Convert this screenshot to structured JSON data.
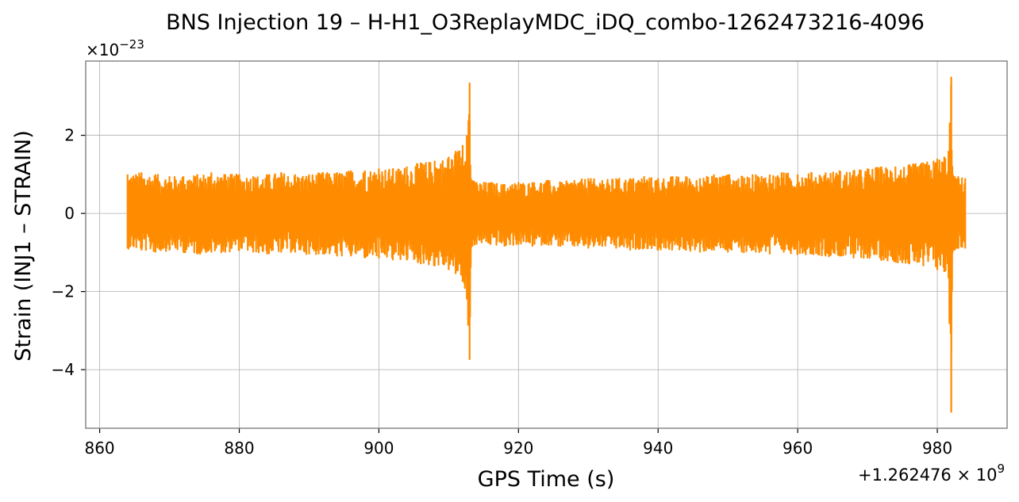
{
  "chart_data": {
    "type": "line",
    "title": "BNS Injection 19 – H-H1_O3ReplayMDC_iDQ_combo-1262473216-4096",
    "xlabel": "GPS Time (s)",
    "ylabel": "Strain (INJ1 – STRAIN)",
    "x_offset_label": "+1.262476 × 10",
    "x_offset_exponent": "9",
    "y_scale_label": "×10",
    "y_scale_exponent": "−23",
    "xlim": [
      858,
      990
    ],
    "ylim": [
      -5.5,
      3.9
    ],
    "x_ticks": [
      860,
      880,
      900,
      920,
      940,
      960,
      980
    ],
    "x_tick_labels": [
      "860",
      "880",
      "900",
      "920",
      "940",
      "960",
      "980"
    ],
    "y_ticks": [
      -4,
      -2,
      0,
      2
    ],
    "y_tick_labels": [
      "−4",
      "−2",
      "0",
      "2"
    ],
    "grid": true,
    "color": "#ff8c00",
    "series": [
      {
        "x": [
          864.0,
          866.0,
          868.0,
          870.0,
          872.0,
          874.0,
          876.0,
          878.0,
          880.0,
          882.0,
          884.0,
          886.0,
          888.0,
          890.0,
          892.0,
          894.0,
          896.0,
          898.0,
          900.0,
          902.0,
          904.0,
          906.0,
          908.0,
          910.0,
          911.0,
          912.0,
          912.6,
          913.0,
          913.2,
          913.4,
          914.0,
          916.0,
          918.0,
          920.0,
          922.0,
          924.0,
          926.0,
          928.0,
          930.0,
          932.0,
          934.0,
          936.0,
          938.0,
          940.0,
          942.0,
          944.0,
          946.0,
          948.0,
          950.0,
          952.0,
          954.0,
          956.0,
          958.0,
          960.0,
          962.0,
          964.0,
          966.0,
          968.0,
          970.0,
          972.0,
          974.0,
          976.0,
          978.0,
          980.0,
          981.0,
          981.6,
          982.0,
          982.2,
          982.5,
          983.0,
          984.0
        ],
        "envelope_upper": [
          1.0,
          1.05,
          1.0,
          0.95,
          0.95,
          1.0,
          1.05,
          1.0,
          1.0,
          0.95,
          1.0,
          1.05,
          1.0,
          1.0,
          1.05,
          1.05,
          1.1,
          1.1,
          1.15,
          1.15,
          1.2,
          1.3,
          1.35,
          1.45,
          1.6,
          1.75,
          2.0,
          3.35,
          0.9,
          0.85,
          0.8,
          0.8,
          0.75,
          0.8,
          0.8,
          0.85,
          0.8,
          0.85,
          0.9,
          0.85,
          0.9,
          0.9,
          0.95,
          0.9,
          0.95,
          0.95,
          0.9,
          1.0,
          1.0,
          0.95,
          1.0,
          1.0,
          1.05,
          1.0,
          1.05,
          1.05,
          1.1,
          1.1,
          1.15,
          1.2,
          1.2,
          1.25,
          1.3,
          1.4,
          1.45,
          1.6,
          3.5,
          1.0,
          0.95,
          0.95,
          0.9
        ],
        "envelope_lower": [
          -0.9,
          -0.95,
          -1.0,
          -0.95,
          -1.0,
          -1.05,
          -1.0,
          -1.0,
          -0.95,
          -1.0,
          -1.05,
          -1.0,
          -1.0,
          -1.05,
          -1.05,
          -1.1,
          -1.1,
          -1.15,
          -1.15,
          -1.2,
          -1.2,
          -1.3,
          -1.35,
          -1.45,
          -1.55,
          -1.75,
          -2.2,
          -3.75,
          -0.9,
          -0.85,
          -0.8,
          -0.8,
          -0.85,
          -0.8,
          -0.85,
          -0.8,
          -0.85,
          -0.85,
          -0.9,
          -0.85,
          -0.9,
          -0.95,
          -0.9,
          -0.95,
          -0.95,
          -0.95,
          -1.0,
          -0.95,
          -1.0,
          -1.0,
          -1.0,
          -1.05,
          -1.0,
          -1.05,
          -1.05,
          -1.1,
          -1.1,
          -1.15,
          -1.15,
          -1.2,
          -1.25,
          -1.3,
          -1.35,
          -1.45,
          -1.5,
          -1.65,
          -5.1,
          -1.0,
          -0.95,
          -0.9,
          -0.9
        ]
      }
    ]
  }
}
